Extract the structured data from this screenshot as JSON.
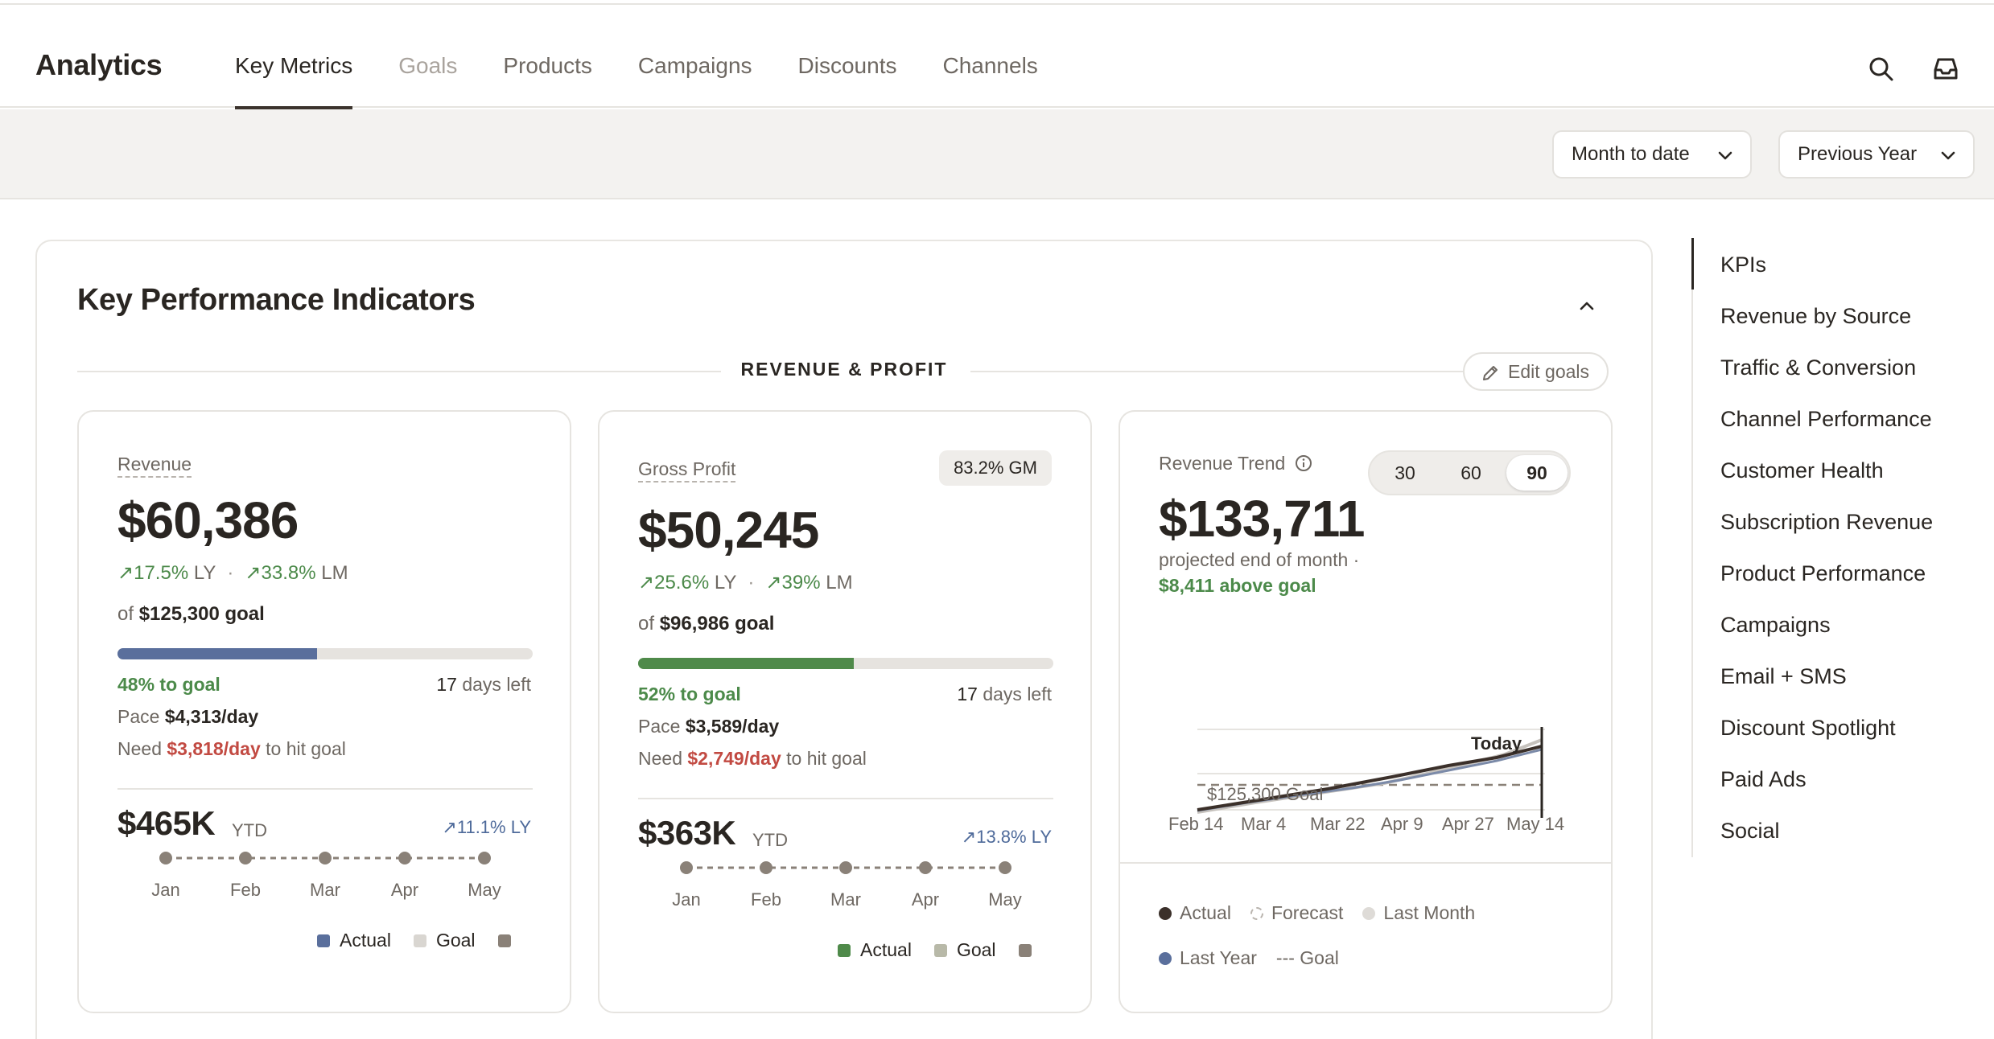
{
  "header": {
    "app_title": "Analytics",
    "tabs": [
      {
        "label": "Key Metrics",
        "state": "active"
      },
      {
        "label": "Goals",
        "state": "muted"
      },
      {
        "label": "Products",
        "state": "normal"
      },
      {
        "label": "Campaigns",
        "state": "normal"
      },
      {
        "label": "Discounts",
        "state": "normal"
      },
      {
        "label": "Channels",
        "state": "normal"
      }
    ],
    "icons": [
      "search-icon",
      "inbox-icon"
    ]
  },
  "filters": {
    "period": "Month to date",
    "comparison": "Previous Year"
  },
  "panel": {
    "title": "Key Performance Indicators",
    "section": "REVENUE & PROFIT",
    "edit_goals": "Edit goals"
  },
  "revenue": {
    "label": "Revenue",
    "value": "$60,386",
    "delta_ly_value": "17.5%",
    "delta_ly_unit": "LY",
    "delta_lm_value": "33.8%",
    "delta_lm_unit": "LM",
    "goal_prefix": "of",
    "goal_value": "$125,300 goal",
    "progress": 0.48,
    "to_goal": "48% to goal",
    "days_left_num": "17",
    "days_left_text": "days left",
    "pace_label": "Pace",
    "pace_value": "$4,313/day",
    "need_label": "Need",
    "need_value": "$3,818/day",
    "need_suffix": "to hit goal",
    "ytd_value": "$465K",
    "ytd_unit": "YTD",
    "ytd_delta": "11.1% LY",
    "months": [
      "Jan",
      "Feb",
      "Mar",
      "Apr",
      "May"
    ],
    "legend": {
      "actual": "Actual",
      "goal": "Goal"
    }
  },
  "gross_profit": {
    "label": "Gross Profit",
    "badge": "83.2% GM",
    "value": "$50,245",
    "delta_ly_value": "25.6%",
    "delta_ly_unit": "LY",
    "delta_lm_value": "39%",
    "delta_lm_unit": "LM",
    "goal_prefix": "of",
    "goal_value": "$96,986 goal",
    "progress": 0.52,
    "to_goal": "52% to goal",
    "days_left_num": "17",
    "days_left_text": "days left",
    "pace_label": "Pace",
    "pace_value": "$3,589/day",
    "need_label": "Need",
    "need_value": "$2,749/day",
    "need_suffix": "to hit goal",
    "ytd_value": "$363K",
    "ytd_unit": "YTD",
    "ytd_delta": "13.8% LY",
    "months": [
      "Jan",
      "Feb",
      "Mar",
      "Apr",
      "May"
    ],
    "legend": {
      "actual": "Actual",
      "goal": "Goal"
    }
  },
  "trend": {
    "label": "Revenue Trend",
    "ranges": [
      "30",
      "60",
      "90"
    ],
    "active_range": "90",
    "value": "$133,711",
    "sub_text": "projected end of month ·",
    "sub_highlight": "$8,411 above goal",
    "goal_line_label": "$125,300 Goal",
    "today_label": "Today",
    "x_labels": [
      "Feb 14",
      "Mar 4",
      "Mar 22",
      "Apr 9",
      "Apr 27",
      "May 14"
    ],
    "legend": [
      "Actual",
      "Forecast",
      "Last Month",
      "Last Year",
      "--- Goal"
    ]
  },
  "right_nav": {
    "items": [
      "KPIs",
      "Revenue by Source",
      "Traffic & Conversion",
      "Channel Performance",
      "Customer Health",
      "Subscription Revenue",
      "Product Performance",
      "Campaigns",
      "Email + SMS",
      "Discount Spotlight",
      "Paid Ads",
      "Social"
    ],
    "active": "KPIs"
  },
  "colors": {
    "accent_dark": "#2a2622",
    "revenue_bar": "#5a6f9c",
    "profit_bar": "#4f8a4a",
    "positive": "#4c8a4a",
    "negative": "#c24a42",
    "ly_blue": "#4e6a9a",
    "goal_swatch": "#d9d6d1",
    "month_dot": "#8a8178"
  }
}
